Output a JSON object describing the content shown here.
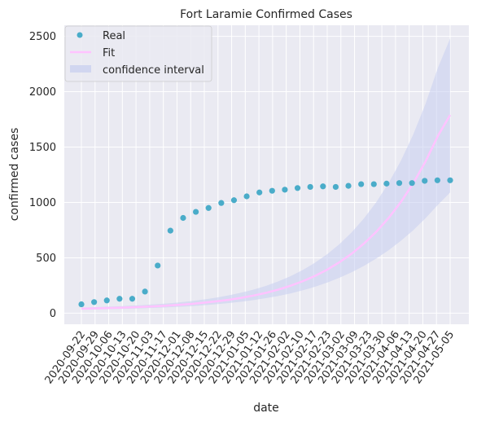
{
  "chart_data": {
    "type": "scatter",
    "title": "Fort Laramie Confirmed Cases",
    "xlabel": "date",
    "ylabel": "confirmed cases",
    "ylim": [
      -100,
      2600
    ],
    "yticks": [
      0,
      500,
      1000,
      1500,
      2000,
      2500
    ],
    "grid": true,
    "legend_position": "top-left",
    "x_tick_labels": [
      "2020-09-22",
      "2020-09-29",
      "2020-10-06",
      "2020-10-13",
      "2020-10-20",
      "2020-11-03",
      "2020-11-17",
      "2020-12-01",
      "2020-12-08",
      "2020-12-15",
      "2020-12-22",
      "2020-12-29",
      "2021-01-05",
      "2021-01-12",
      "2021-01-26",
      "2021-02-02",
      "2021-02-10",
      "2021-02-17",
      "2021-02-23",
      "2021-03-02",
      "2021-03-09",
      "2021-03-23",
      "2021-03-30",
      "2021-04-06",
      "2021-04-13",
      "2021-04-20",
      "2021-04-27",
      "2021-05-05"
    ],
    "series": [
      {
        "name": "Real",
        "kind": "scatter",
        "color": "#4aacc9",
        "values": [
          80,
          100,
          115,
          130,
          130,
          195,
          430,
          745,
          860,
          915,
          950,
          995,
          1020,
          1055,
          1090,
          1105,
          1115,
          1130,
          1140,
          1145,
          1140,
          1150,
          1165,
          1165,
          1170,
          1175,
          1175,
          1195,
          1200,
          1200
        ]
      },
      {
        "name": "Fit",
        "kind": "line",
        "color": "#ffc3ff",
        "values": [
          40,
          43,
          46,
          49,
          53,
          57,
          62,
          68,
          76,
          84,
          95,
          107,
          121,
          138,
          159,
          183,
          212,
          247,
          288,
          336,
          393,
          460,
          538,
          630,
          736,
          860,
          1005,
          1173,
          1370,
          1600,
          1790
        ]
      },
      {
        "name": "confidence interval",
        "kind": "band",
        "color": "#c6cdf0",
        "lower": [
          32,
          34,
          36,
          38,
          41,
          44,
          48,
          53,
          58,
          64,
          72,
          81,
          91,
          103,
          118,
          135,
          155,
          178,
          206,
          238,
          276,
          320,
          370,
          428,
          494,
          569,
          654,
          749,
          857,
          978,
          1090
        ],
        "upper": [
          50,
          54,
          58,
          62,
          67,
          73,
          80,
          88,
          98,
          110,
          124,
          141,
          161,
          185,
          213,
          246,
          286,
          333,
          389,
          455,
          533,
          624,
          731,
          857,
          1004,
          1176,
          1378,
          1614,
          1891,
          2215,
          2480
        ]
      }
    ]
  }
}
